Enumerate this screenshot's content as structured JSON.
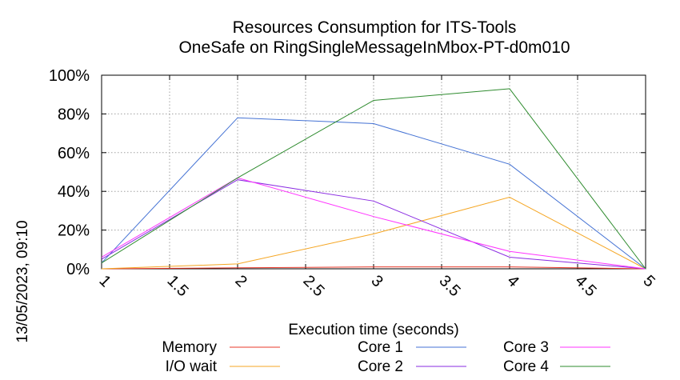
{
  "chart_data": {
    "type": "line",
    "title": "Resources Consumption for ITS-Tools",
    "subtitle": "OneSafe on RingSingleMessageInMbox-PT-d0m010",
    "xlabel": "Execution time (seconds)",
    "ylabel": "",
    "timestamp": "13/05/2023, 09:10",
    "xlim": [
      1,
      5
    ],
    "ylim": [
      0,
      100
    ],
    "x_ticks": [
      "1",
      "1.5",
      "2",
      "2.5",
      "3",
      "3.5",
      "4",
      "4.5",
      "5"
    ],
    "y_ticks": [
      "0%",
      "20%",
      "40%",
      "60%",
      "80%",
      "100%"
    ],
    "grid": true,
    "legend_position": "bottom",
    "x": [
      1,
      2,
      3,
      4,
      5
    ],
    "series": [
      {
        "name": "Memory",
        "color": "#e8392a",
        "values": [
          0,
          0.5,
          1,
          1,
          0
        ]
      },
      {
        "name": "I/O wait",
        "color": "#f5a623",
        "values": [
          0,
          2.5,
          18,
          37,
          0
        ]
      },
      {
        "name": "Core 1",
        "color": "#4472d4",
        "values": [
          3,
          78,
          75,
          54,
          0
        ]
      },
      {
        "name": "Core 2",
        "color": "#8a2be2",
        "values": [
          5,
          46,
          35,
          6,
          0
        ]
      },
      {
        "name": "Core 3",
        "color": "#ff33ff",
        "values": [
          6,
          47,
          27,
          9,
          0
        ]
      },
      {
        "name": "Core 4",
        "color": "#2e8b2e",
        "values": [
          3,
          47,
          87,
          93,
          0
        ]
      }
    ]
  }
}
